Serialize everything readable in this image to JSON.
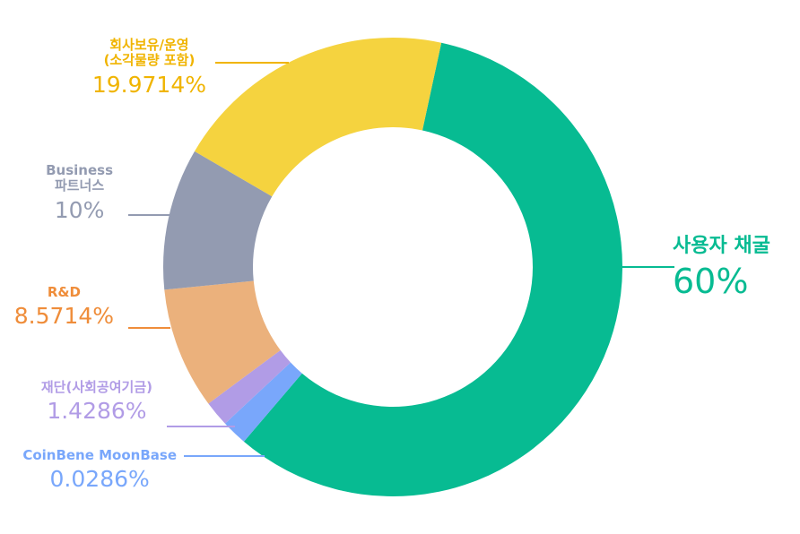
{
  "chart_data": {
    "type": "pie",
    "series": [
      {
        "name": "사용자 채굴",
        "value": 60,
        "label": "60%",
        "color": "#07BB92"
      },
      {
        "name": "CoinBene MoonBase",
        "value": 0.0286,
        "label": "0.0286%",
        "color": "#79A7FB"
      },
      {
        "name": "재단(사회공여기금)",
        "value": 1.4286,
        "label": "1.4286%",
        "color": "#B19CE6"
      },
      {
        "name": "R&D",
        "value": 8.5714,
        "label": "8.5714%",
        "color": "#EBB17C"
      },
      {
        "name": "Business 파트너스",
        "value": 10,
        "label": "10%",
        "color": "#939BB1"
      },
      {
        "name": "회사보유/운영 (소각물량 포함)",
        "value": 19.9714,
        "label": "19.9714%",
        "color": "#F5D33F"
      }
    ],
    "labels": {
      "mining": {
        "line1": "사용자 채굴",
        "pct": "60%"
      },
      "moonbase": {
        "line1": "CoinBene MoonBase",
        "pct": "0.0286%"
      },
      "foundation": {
        "line1": "재단(사회공여기금)",
        "pct": "1.4286%"
      },
      "rnd": {
        "line1": "R&D",
        "pct": "8.5714%"
      },
      "business": {
        "line1": "Business",
        "line2": "파트너스",
        "pct": "10%"
      },
      "company": {
        "line1": "회사보유/운영",
        "line2": "(소각물량 포함)",
        "pct": "19.9714%"
      }
    },
    "label_colors": {
      "mining": "#07BB92",
      "moonbase": "#79A7FB",
      "foundation": "#B19CE6",
      "rnd": "#EF8D3A",
      "business": "#939BB1",
      "company": "#F0B400"
    }
  }
}
